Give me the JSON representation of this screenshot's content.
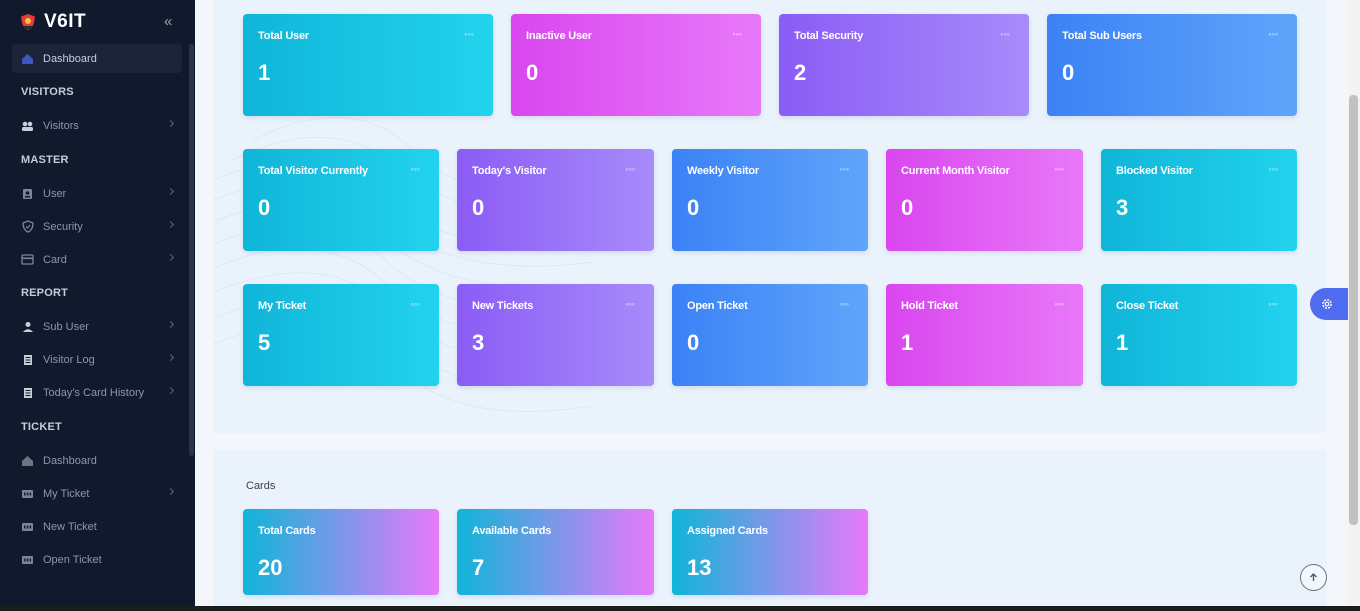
{
  "brand": {
    "name": "V6IT"
  },
  "sidebar": {
    "dashboard": "Dashboard",
    "sections": {
      "visitors": "VISITORS",
      "master": "MASTER",
      "report": "REPORT",
      "ticket": "TICKET"
    },
    "items": {
      "visitors": "Visitors",
      "user": "User",
      "security": "Security",
      "card": "Card",
      "sub_user": "Sub User",
      "visitor_log": "Visitor Log",
      "todays_card_history": "Today's Card History",
      "ticket_dashboard": "Dashboard",
      "my_ticket": "My Ticket",
      "new_ticket": "New Ticket",
      "open_ticket": "Open Ticket"
    }
  },
  "stats": {
    "row1": [
      {
        "title": "Total User",
        "value": "1"
      },
      {
        "title": "Inactive User",
        "value": "0"
      },
      {
        "title": "Total Security",
        "value": "2"
      },
      {
        "title": "Total Sub Users",
        "value": "0"
      }
    ],
    "row2": [
      {
        "title": "Total Visitor Currently",
        "value": "0"
      },
      {
        "title": "Today's Visitor",
        "value": "0"
      },
      {
        "title": "Weekly Visitor",
        "value": "0"
      },
      {
        "title": "Current Month Visitor",
        "value": "0"
      },
      {
        "title": "Blocked Visitor",
        "value": "3"
      }
    ],
    "row3": [
      {
        "title": "My Ticket",
        "value": "5"
      },
      {
        "title": "New Tickets",
        "value": "3"
      },
      {
        "title": "Open Ticket",
        "value": "0"
      },
      {
        "title": "Hold Ticket",
        "value": "1"
      },
      {
        "title": "Close Ticket",
        "value": "1"
      }
    ]
  },
  "cards_section": {
    "heading": "Cards",
    "items": [
      {
        "title": "Total Cards",
        "value": "20"
      },
      {
        "title": "Available Cards",
        "value": "7"
      },
      {
        "title": "Assigned Cards",
        "value": "13"
      }
    ]
  },
  "card_menu_glyph": "◦◦◦",
  "colors": {
    "sidebar_bg": "#111a2d",
    "panel_bg": "#eaf2fc",
    "cyan": "#22d3ee",
    "pink": "#e879f9",
    "purple": "#8b5cf6",
    "blue": "#3b82f6",
    "settings_button": "#4f6cf0"
  },
  "icons": {
    "brand": "shield-logo-icon",
    "collapse": "double-chevron-left-icon",
    "settings": "gear-icon",
    "scroll_top": "arrow-up-icon"
  }
}
